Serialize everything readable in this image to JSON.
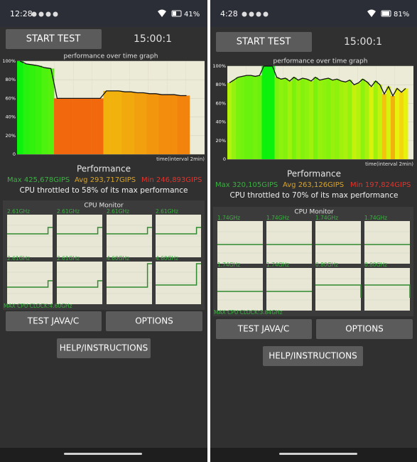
{
  "screens": [
    {
      "status_bar": {
        "time": "12:28",
        "battery": "41%"
      },
      "start_button": "START TEST",
      "timer": "15:00:1",
      "graph": {
        "type": "bar",
        "title": "performance over time graph",
        "ylim": [
          0,
          100
        ],
        "yticks": [
          0,
          {
            "value": 20,
            "label": "20%"
          },
          {
            "value": 40,
            "label": "40%"
          },
          {
            "value": 60,
            "label": "60%"
          },
          {
            "value": 80,
            "label": "80%"
          },
          {
            "value": 100,
            "label": "100%"
          }
        ],
        "x_label": "time(interval 2min)",
        "values": [
          100,
          97,
          96,
          95,
          93,
          92,
          60,
          60,
          60,
          60,
          60,
          60,
          60,
          60,
          68,
          68,
          68,
          67,
          67,
          66,
          66,
          65,
          65,
          64,
          64,
          64,
          63,
          63
        ]
      },
      "performance": {
        "title": "Performance",
        "max": "Max 425,678GIPS",
        "avg": "Avg 293,717GIPS",
        "min": "Min 246,893GIPS",
        "throttle": "CPU throttled to 58% of its max performance"
      },
      "cpu_monitor": {
        "title": "CPU Monitor",
        "max_clock": "MAX CPU CLOCK:4.60GHz",
        "cores": [
          {
            "label": "2.61GHz",
            "values": [
              55,
              55,
              55,
              55,
              55,
              55,
              55,
              55,
              55,
              70,
              70
            ]
          },
          {
            "label": "2.61GHz",
            "values": [
              55,
              55,
              55,
              55,
              55,
              55,
              55,
              55,
              55,
              70,
              70
            ]
          },
          {
            "label": "2.61GHz",
            "values": [
              55,
              55,
              55,
              55,
              55,
              55,
              55,
              55,
              55,
              70,
              70
            ]
          },
          {
            "label": "2.61GHz",
            "values": [
              55,
              55,
              55,
              55,
              55,
              55,
              55,
              55,
              55,
              70,
              70
            ]
          },
          {
            "label": "2.61GHz",
            "values": [
              40,
              40,
              40,
              40,
              40,
              40,
              40,
              40,
              40,
              55,
              55
            ]
          },
          {
            "label": "2.61GHz",
            "values": [
              40,
              40,
              40,
              40,
              40,
              40,
              40,
              40,
              40,
              55,
              55
            ]
          },
          {
            "label": "4.60GHz",
            "values": [
              40,
              40,
              40,
              40,
              40,
              40,
              40,
              40,
              40,
              95,
              95
            ]
          },
          {
            "label": "4.60GHz",
            "values": [
              45,
              45,
              45,
              45,
              45,
              45,
              45,
              45,
              45,
              95,
              95
            ]
          }
        ]
      },
      "buttons": {
        "test": "TEST JAVA/C",
        "options": "OPTIONS",
        "help": "HELP/INSTRUCTIONS"
      }
    },
    {
      "status_bar": {
        "time": "4:28",
        "battery": "81%"
      },
      "start_button": "START TEST",
      "timer": "15:00:1",
      "graph": {
        "type": "bar",
        "title": "performance over time graph",
        "ylim": [
          0,
          100
        ],
        "yticks": [
          0,
          {
            "value": 20,
            "label": "20%"
          },
          {
            "value": 40,
            "label": "40%"
          },
          {
            "value": 60,
            "label": "60%"
          },
          {
            "value": 80,
            "label": "80%"
          },
          {
            "value": 100,
            "label": "100%"
          }
        ],
        "x_label": "time(interval 2min)",
        "values": [
          82,
          85,
          88,
          89,
          90,
          90,
          89,
          90,
          100,
          100,
          100,
          88,
          86,
          87,
          84,
          88,
          85,
          87,
          86,
          84,
          88,
          85,
          86,
          87,
          85,
          86,
          84,
          83,
          85,
          80,
          82,
          86,
          83,
          78,
          84,
          80,
          70,
          78,
          68,
          76,
          72,
          76
        ]
      },
      "performance": {
        "title": "Performance",
        "max": "Max 320,105GIPS",
        "avg": "Avg 263,126GIPS",
        "min": "Min 197,824GIPS",
        "throttle": "CPU throttled to 70% of its max performance"
      },
      "cpu_monitor": {
        "title": "CPU Monitor",
        "max_clock": "MAX CPU CLOCK:3.84GHz",
        "cores": [
          {
            "label": "1.74GHz",
            "values": [
              45,
              45,
              45,
              45,
              45,
              45,
              45,
              45,
              45,
              45,
              45
            ]
          },
          {
            "label": "1.74GHz",
            "values": [
              45,
              45,
              45,
              45,
              45,
              45,
              45,
              45,
              45,
              45,
              45
            ]
          },
          {
            "label": "1.74GHz",
            "values": [
              45,
              45,
              45,
              45,
              45,
              45,
              45,
              45,
              45,
              45,
              45
            ]
          },
          {
            "label": "1.74GHz",
            "values": [
              45,
              45,
              45,
              45,
              45,
              45,
              45,
              45,
              45,
              45,
              45
            ]
          },
          {
            "label": "1.74GHz",
            "values": [
              45,
              45,
              45,
              45,
              45,
              45,
              45,
              45,
              45,
              45,
              45
            ]
          },
          {
            "label": "1.74GHz",
            "values": [
              45,
              45,
              45,
              45,
              45,
              45,
              45,
              45,
              45,
              45,
              45
            ]
          },
          {
            "label": "0.80GHz",
            "values": [
              60,
              60,
              60,
              60,
              60,
              60,
              60,
              60,
              60,
              60,
              30
            ]
          },
          {
            "label": "0.80GHz",
            "values": [
              60,
              60,
              60,
              60,
              60,
              60,
              60,
              60,
              60,
              60,
              30
            ]
          }
        ]
      },
      "buttons": {
        "test": "TEST JAVA/C",
        "options": "OPTIONS",
        "help": "HELP/INSTRUCTIONS"
      }
    }
  ]
}
